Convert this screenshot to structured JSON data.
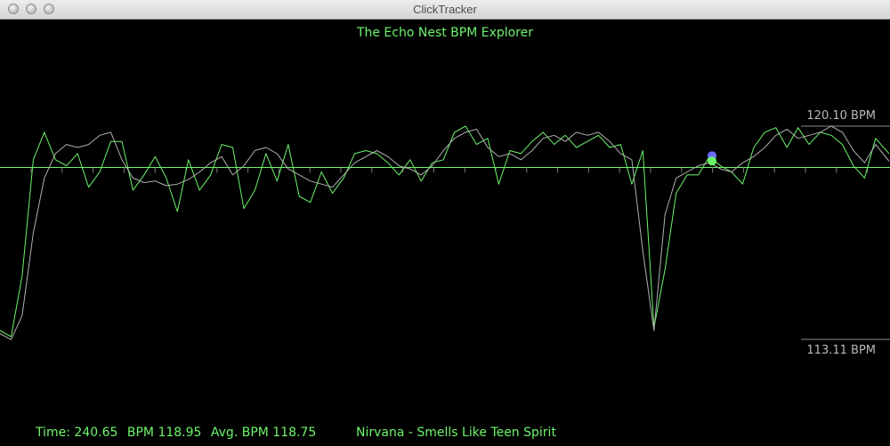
{
  "window": {
    "title": "ClickTracker"
  },
  "app": {
    "title": "The Echo Nest BPM Explorer"
  },
  "scale": {
    "top_label": "120.10 BPM",
    "bottom_label": "113.11 BPM"
  },
  "status": {
    "time": "Time: 240.65",
    "bpm": "BPM 118.95",
    "avg": "Avg. BPM 118.75",
    "track": "Nirvana - Smells Like Teen Spirit"
  },
  "colors": {
    "background": "#000000",
    "accent_green": "#6cf56a",
    "raw_line": "#b0b0b0",
    "marker_blue": "#6b6bff",
    "marker_green": "#6cf56a"
  },
  "chart_data": {
    "type": "line",
    "ylim": [
      113.11,
      120.1
    ],
    "y_reference": 118.75,
    "series": [
      {
        "x": [
          0,
          3,
          6,
          9,
          12,
          15,
          18,
          21,
          24,
          27,
          30,
          33,
          36,
          39,
          42,
          45,
          48,
          51,
          54,
          57,
          60,
          63,
          66,
          69,
          72,
          75,
          78,
          81,
          84,
          87,
          90,
          93,
          96,
          99,
          102,
          105,
          108,
          111,
          114,
          117,
          120,
          123,
          126,
          129,
          132,
          135,
          138,
          141,
          144,
          147,
          150,
          153,
          156,
          159,
          162,
          165,
          168,
          171,
          174,
          177,
          180,
          183,
          186,
          189,
          192,
          195,
          198,
          201,
          204,
          207,
          210,
          213,
          216,
          219,
          222,
          225,
          228,
          231,
          234,
          237,
          240.65
        ],
        "values": [
          113.3,
          113.1,
          113.9,
          116.6,
          118.4,
          119.2,
          119.5,
          119.4,
          119.5,
          119.8,
          119.9,
          119.0,
          118.4,
          118.25,
          118.3,
          118.15,
          118.2,
          118.35,
          118.6,
          118.9,
          119.1,
          118.5,
          118.8,
          119.3,
          119.4,
          119.2,
          118.7,
          118.5,
          118.3,
          118.2,
          118.1,
          118.5,
          118.9,
          119.1,
          119.3,
          119.1,
          118.8,
          118.7,
          118.5,
          118.8,
          119.3,
          119.7,
          119.9,
          120.0,
          119.4,
          119.1,
          119.2,
          119.0,
          119.3,
          119.7,
          119.8,
          119.6,
          119.9,
          119.8,
          119.9,
          119.6,
          119.2,
          119.0,
          116.0,
          113.4,
          117.2,
          118.4,
          118.6,
          118.8,
          118.9,
          118.7,
          118.6,
          118.9,
          119.1,
          119.4,
          119.8,
          120.0,
          119.7,
          119.8,
          119.9,
          120.1,
          119.9,
          119.3,
          118.9,
          119.5,
          118.95
        ]
      },
      {
        "x": [
          0,
          3,
          6,
          9,
          12,
          15,
          18,
          21,
          24,
          27,
          30,
          33,
          36,
          39,
          42,
          45,
          48,
          51,
          54,
          57,
          60,
          63,
          66,
          69,
          72,
          75,
          78,
          81,
          84,
          87,
          90,
          93,
          96,
          99,
          102,
          105,
          108,
          111,
          114,
          117,
          120,
          123,
          126,
          129,
          132,
          135,
          138,
          141,
          144,
          147,
          150,
          153,
          156,
          159,
          162,
          165,
          168,
          171,
          174,
          177,
          180,
          183,
          186,
          189,
          192,
          195,
          198,
          201,
          204,
          207,
          210,
          213,
          216,
          219,
          222,
          225,
          228,
          231,
          234,
          237,
          240.65
        ],
        "values": [
          113.4,
          113.2,
          115.2,
          119.0,
          119.9,
          119.0,
          118.8,
          119.2,
          118.1,
          118.6,
          119.6,
          119.6,
          118.0,
          118.5,
          119.1,
          118.4,
          117.3,
          119.0,
          118.0,
          118.5,
          119.5,
          119.4,
          117.4,
          118.0,
          119.2,
          118.3,
          119.5,
          117.8,
          117.6,
          118.6,
          117.9,
          118.4,
          119.2,
          119.3,
          119.2,
          118.9,
          118.5,
          119.0,
          118.3,
          118.9,
          119.0,
          119.9,
          120.1,
          119.5,
          119.7,
          118.2,
          119.3,
          119.2,
          119.6,
          119.9,
          119.5,
          119.8,
          119.4,
          119.6,
          119.8,
          119.4,
          119.5,
          118.2,
          119.3,
          113.5,
          115.4,
          117.9,
          118.5,
          118.5,
          119.1,
          118.8,
          118.6,
          118.2,
          119.4,
          119.9,
          120.05,
          119.4,
          120.05,
          119.5,
          119.9,
          119.8,
          119.5,
          118.8,
          118.4,
          119.7,
          119.2
        ]
      }
    ]
  }
}
